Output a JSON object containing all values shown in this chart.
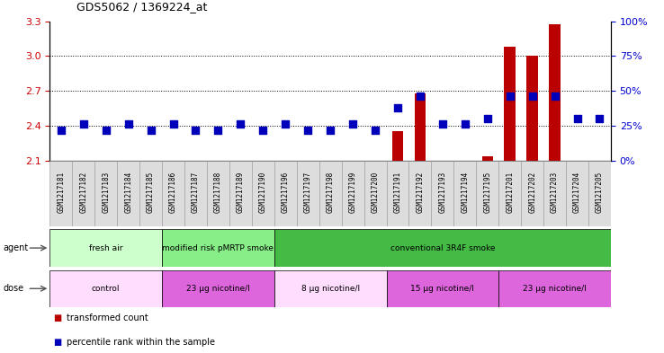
{
  "title": "GDS5062 / 1369224_at",
  "samples": [
    "GSM1217181",
    "GSM1217182",
    "GSM1217183",
    "GSM1217184",
    "GSM1217185",
    "GSM1217186",
    "GSM1217187",
    "GSM1217188",
    "GSM1217189",
    "GSM1217190",
    "GSM1217196",
    "GSM1217197",
    "GSM1217198",
    "GSM1217199",
    "GSM1217200",
    "GSM1217191",
    "GSM1217192",
    "GSM1217193",
    "GSM1217194",
    "GSM1217195",
    "GSM1217201",
    "GSM1217202",
    "GSM1217203",
    "GSM1217204",
    "GSM1217205"
  ],
  "transformed_count": [
    2.1,
    2.1,
    2.1,
    2.1,
    2.1,
    2.1,
    2.1,
    2.1,
    2.1,
    2.1,
    2.1,
    2.1,
    2.1,
    2.1,
    2.1,
    2.35,
    2.68,
    2.1,
    2.1,
    2.14,
    3.08,
    3.0,
    3.27,
    2.1,
    2.1
  ],
  "percentile_rank": [
    22,
    26,
    22,
    26,
    22,
    26,
    22,
    22,
    26,
    22,
    26,
    22,
    22,
    26,
    22,
    38,
    46,
    26,
    26,
    30,
    46,
    46,
    46,
    30,
    30
  ],
  "ylim_left": [
    2.1,
    3.3
  ],
  "ylim_right": [
    0,
    100
  ],
  "yticks_left": [
    2.1,
    2.4,
    2.7,
    3.0,
    3.3
  ],
  "yticks_right": [
    0,
    25,
    50,
    75,
    100
  ],
  "hlines": [
    2.4,
    2.7,
    3.0
  ],
  "bar_color": "#bb0000",
  "dot_color": "#0000bb",
  "bar_width": 0.5,
  "dot_size": 35,
  "agent_groups": [
    {
      "label": "fresh air",
      "start": 0,
      "end": 5,
      "color": "#ccffcc"
    },
    {
      "label": "modified risk pMRTP smoke",
      "start": 5,
      "end": 10,
      "color": "#88ee88"
    },
    {
      "label": "conventional 3R4F smoke",
      "start": 10,
      "end": 25,
      "color": "#44bb44"
    }
  ],
  "dose_groups": [
    {
      "label": "control",
      "start": 0,
      "end": 5,
      "color": "#ffddff"
    },
    {
      "label": "23 μg nicotine/l",
      "start": 5,
      "end": 10,
      "color": "#dd66dd"
    },
    {
      "label": "8 μg nicotine/l",
      "start": 10,
      "end": 15,
      "color": "#ffddff"
    },
    {
      "label": "15 μg nicotine/l",
      "start": 15,
      "end": 20,
      "color": "#dd66dd"
    },
    {
      "label": "23 μg nicotine/l",
      "start": 20,
      "end": 25,
      "color": "#dd66dd"
    }
  ],
  "legend_items": [
    {
      "label": "transformed count",
      "color": "#bb0000"
    },
    {
      "label": "percentile rank within the sample",
      "color": "#0000bb"
    }
  ],
  "bg_color": "#ffffff",
  "tick_label_color_left": "#cc0000",
  "tick_label_color_right": "#0000cc",
  "sample_box_color": "#dddddd",
  "sample_box_edge": "#999999"
}
